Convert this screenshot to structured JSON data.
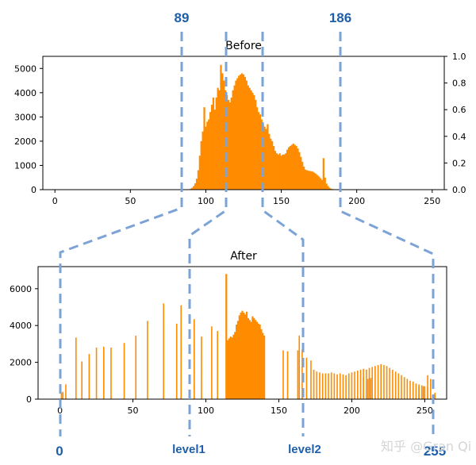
{
  "colors": {
    "bars": "#ff8c00",
    "dashes": "#7ba3d6",
    "annotation_text": "#1f5faa",
    "watermark": "#d5d5d5"
  },
  "annotations": {
    "top_left": "89",
    "top_right": "186",
    "bottom_left": "0",
    "bottom_level1": "level1",
    "bottom_level2": "level2",
    "bottom_right": "255"
  },
  "watermark": "知乎 @Gran Qi",
  "chart_data": [
    {
      "type": "bar",
      "title": "Before",
      "xlim": [
        -8,
        258
      ],
      "ylim": [
        0,
        5500
      ],
      "xticks": [
        "0",
        "50",
        "100",
        "150",
        "200",
        "250"
      ],
      "yticks": [
        "0",
        "1000",
        "2000",
        "3000",
        "4000",
        "5000"
      ],
      "y2ticks": [
        "0.0",
        "0.2",
        "0.4",
        "0.6",
        "0.8",
        "1.0"
      ],
      "bars": [
        [
          89,
          15
        ],
        [
          90,
          40
        ],
        [
          91,
          80
        ],
        [
          92,
          150
        ],
        [
          93,
          260
        ],
        [
          94,
          450
        ],
        [
          95,
          800
        ],
        [
          96,
          1400
        ],
        [
          97,
          2000
        ],
        [
          98,
          2400
        ],
        [
          99,
          3400
        ],
        [
          100,
          2600
        ],
        [
          101,
          2800
        ],
        [
          102,
          2900
        ],
        [
          103,
          3200
        ],
        [
          104,
          3500
        ],
        [
          105,
          3800
        ],
        [
          106,
          3300
        ],
        [
          107,
          3800
        ],
        [
          108,
          4200
        ],
        [
          109,
          4100
        ],
        [
          110,
          5150
        ],
        [
          111,
          4800
        ],
        [
          112,
          4500
        ],
        [
          113,
          4100
        ],
        [
          114,
          3900
        ],
        [
          115,
          3700
        ],
        [
          116,
          3600
        ],
        [
          117,
          3800
        ],
        [
          118,
          4100
        ],
        [
          119,
          4300
        ],
        [
          120,
          4500
        ],
        [
          121,
          4600
        ],
        [
          122,
          4700
        ],
        [
          123,
          4750
        ],
        [
          124,
          4800
        ],
        [
          125,
          4750
        ],
        [
          126,
          4650
        ],
        [
          127,
          4500
        ],
        [
          128,
          4300
        ],
        [
          129,
          4200
        ],
        [
          130,
          4100
        ],
        [
          131,
          4000
        ],
        [
          132,
          3900
        ],
        [
          133,
          3700
        ],
        [
          134,
          3400
        ],
        [
          135,
          3200
        ],
        [
          136,
          3100
        ],
        [
          137,
          2900
        ],
        [
          138,
          2700
        ],
        [
          139,
          2600
        ],
        [
          140,
          2500
        ],
        [
          141,
          2700
        ],
        [
          142,
          2300
        ],
        [
          143,
          2100
        ],
        [
          144,
          2000
        ],
        [
          145,
          1800
        ],
        [
          146,
          1600
        ],
        [
          147,
          1500
        ],
        [
          148,
          1450
        ],
        [
          149,
          1500
        ],
        [
          150,
          1400
        ],
        [
          151,
          1450
        ],
        [
          152,
          1450
        ],
        [
          153,
          1500
        ],
        [
          154,
          1650
        ],
        [
          155,
          1750
        ],
        [
          156,
          1800
        ],
        [
          157,
          1850
        ],
        [
          158,
          1900
        ],
        [
          159,
          1850
        ],
        [
          160,
          1800
        ],
        [
          161,
          1700
        ],
        [
          162,
          1550
        ],
        [
          163,
          1350
        ],
        [
          164,
          1150
        ],
        [
          165,
          950
        ],
        [
          166,
          830
        ],
        [
          167,
          800
        ],
        [
          168,
          780
        ],
        [
          169,
          770
        ],
        [
          170,
          760
        ],
        [
          171,
          740
        ],
        [
          172,
          700
        ],
        [
          173,
          650
        ],
        [
          174,
          600
        ],
        [
          175,
          540
        ],
        [
          176,
          470
        ],
        [
          177,
          400
        ],
        [
          178,
          1300
        ],
        [
          179,
          500
        ],
        [
          180,
          250
        ],
        [
          181,
          150
        ],
        [
          182,
          80
        ],
        [
          183,
          40
        ],
        [
          184,
          25
        ],
        [
          185,
          15
        ],
        [
          186,
          5
        ]
      ]
    },
    {
      "type": "bar",
      "title": "After",
      "xlim": [
        -15,
        265
      ],
      "ylim": [
        0,
        7200
      ],
      "xticks": [
        "0",
        "50",
        "100",
        "150",
        "200",
        "250"
      ],
      "yticks": [
        "0",
        "2000",
        "4000",
        "6000"
      ],
      "spikes": [
        [
          0,
          15
        ],
        [
          1,
          350
        ],
        [
          2,
          400
        ],
        [
          4,
          800
        ],
        [
          11,
          3350
        ],
        [
          15,
          2050
        ],
        [
          20,
          2450
        ],
        [
          25,
          2800
        ],
        [
          30,
          2850
        ],
        [
          35,
          2800
        ],
        [
          44,
          3050
        ],
        [
          52,
          3450
        ],
        [
          60,
          4250
        ],
        [
          71,
          5200
        ],
        [
          80,
          4100
        ],
        [
          83,
          5100
        ],
        [
          92,
          4350
        ],
        [
          97,
          3400
        ],
        [
          104,
          3950
        ],
        [
          108,
          3700
        ],
        [
          153,
          2650
        ],
        [
          156,
          2600
        ],
        [
          163,
          2650
        ],
        [
          164,
          3450
        ],
        [
          166,
          2700
        ],
        [
          169,
          2250
        ],
        [
          172,
          2100
        ],
        [
          208,
          1200
        ],
        [
          211,
          1100
        ],
        [
          213,
          1150
        ],
        [
          246,
          700
        ],
        [
          249,
          700
        ],
        [
          252,
          1300
        ],
        [
          254,
          1100
        ],
        [
          257,
          350
        ]
      ],
      "dense_region": [
        114,
        140
      ],
      "dense_values": [
        6800,
        3200,
        3300,
        3400,
        3350,
        3500,
        3650,
        4050,
        4250,
        4550,
        4700,
        4800,
        4700,
        4600,
        4750,
        4400,
        4300,
        4200,
        4500,
        4400,
        4300,
        4200,
        4100,
        4050,
        3800,
        3600,
        3450
      ],
      "comb_region": [
        174,
        252
      ],
      "comb_step": 2,
      "comb_values": [
        1600,
        1500,
        1450,
        1400,
        1400,
        1400,
        1450,
        1400,
        1350,
        1400,
        1350,
        1300,
        1400,
        1450,
        1500,
        1550,
        1600,
        1650,
        1600,
        1700,
        1750,
        1800,
        1850,
        1900,
        1850,
        1800,
        1700,
        1600,
        1500,
        1400,
        1300,
        1200,
        1100,
        1000,
        950,
        850,
        800,
        750,
        700,
        650
      ]
    }
  ]
}
